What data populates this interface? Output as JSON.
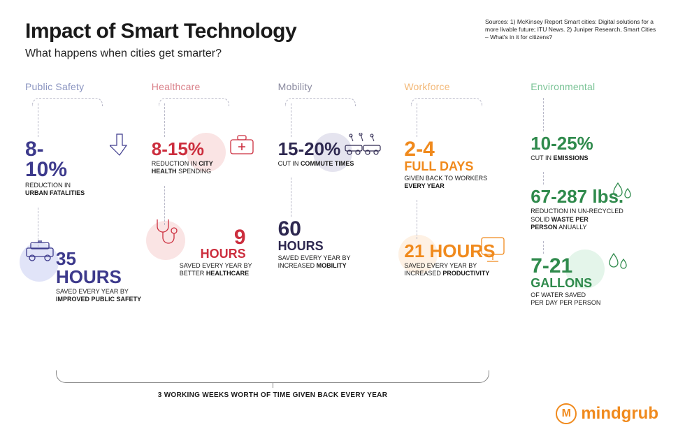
{
  "header": {
    "title": "Impact of Smart Technology",
    "subtitle": "What happens when cities get smarter?",
    "sources": "Sources: 1) McKinsey Report Smart cities: Digital solutions for a more livable future; ITU News. 2) Juniper Research, Smart Cities – What's in it for citizens?"
  },
  "colors": {
    "public_safety": "#3d3a8c",
    "healthcare": "#cc2e3e",
    "mobility": "#2e2850",
    "workforce": "#f08a1d",
    "environmental": "#3aa65f",
    "text": "#1a1a1a",
    "background": "#ffffff",
    "connector": "#b8b8c8",
    "logo": "#f08a1d",
    "circle_ps": "#5b6bd6",
    "circle_hc": "#e26b6b",
    "circle_mb": "#6e6aa8",
    "circle_wf": "#f7b267",
    "circle_env": "#6cc68a"
  },
  "typography": {
    "title_fontsize": 30,
    "subtitle_fontsize": 16,
    "col_title_fontsize": 14,
    "stat_value_fontsize": 26,
    "stat_desc_fontsize": 9,
    "sources_fontsize": 8.5,
    "font_family": "Arial"
  },
  "columns": [
    {
      "key": "public_safety",
      "title": "Public Safety",
      "title_color": "#8a94c0",
      "color": "#3d3a8c",
      "circle_color": "#5b6bd6",
      "icon1": "arrow-down-icon",
      "icon2": "police-car-icon",
      "stats": [
        {
          "value_lines": [
            "8-",
            "10%"
          ],
          "desc_html": "REDUCTION IN<br><b>URBAN FATALITIES</b>"
        },
        {
          "value_lines": [
            "35 HOURS"
          ],
          "desc_html": "SAVED EVERY YEAR BY<br><b>IMPROVED PUBLIC SAFETY</b>"
        }
      ]
    },
    {
      "key": "healthcare",
      "title": "Healthcare",
      "title_color": "#d97f88",
      "color": "#cc2e3e",
      "circle_color": "#e26b6b",
      "icon1": "medkit-icon",
      "icon2": "stethoscope-icon",
      "stats": [
        {
          "value_lines": [
            "8-15%"
          ],
          "desc_html": "REDUCTION IN <b>CITY<br>HEALTH</b> SPENDING"
        },
        {
          "value_lines": [
            "9",
            "HOURS"
          ],
          "align": "right",
          "desc_html": "SAVED EVERY YEAR BY<br>BETTER <b>HEALTHCARE</b>"
        }
      ]
    },
    {
      "key": "mobility",
      "title": "Mobility",
      "title_color": "#8b8ba0",
      "color": "#2e2850",
      "circle_color": "#6e6aa8",
      "icon1": "cars-icon",
      "icon2": "",
      "stats": [
        {
          "value_lines": [
            "15-20%"
          ],
          "desc_html": "CUT IN <b>COMMUTE TIMES</b>"
        },
        {
          "value_lines": [
            "60",
            "HOURS"
          ],
          "desc_html": "SAVED EVERY YEAR BY<br>INCREASED <b>MOBILITY</b>"
        }
      ]
    },
    {
      "key": "workforce",
      "title": "Workforce",
      "title_color": "#f3b877",
      "color": "#f08a1d",
      "circle_color": "#f7b267",
      "icon1": "",
      "icon2": "monitor-icon",
      "stats": [
        {
          "value_lines": [
            "2-4",
            "FULL DAYS"
          ],
          "desc_html": "GIVEN BACK TO WORKERS<br><b>EVERY YEAR</b>"
        },
        {
          "value_lines": [
            "21 HOURS"
          ],
          "desc_html": "SAVED EVERY YEAR BY<br>INCREASED <b>PRODUCTIVITY</b>"
        }
      ]
    },
    {
      "key": "environmental",
      "title": "Environmental",
      "title_color": "#7cc497",
      "color": "#2f8a4c",
      "circle_color": "#6cc68a",
      "icon1": "",
      "icon2": "droplets-icon",
      "stats": [
        {
          "value_lines": [
            "10-25%"
          ],
          "desc_html": "CUT IN <b>EMISSIONS</b>"
        },
        {
          "value_lines": [
            "67-287 lbs."
          ],
          "desc_html": "REDUCTION IN UN-RECYCLED<br>SOLID <b>WASTE PER<br>PERSON</b> ANUALLY"
        },
        {
          "value_lines": [
            "7-21",
            "GALLONS"
          ],
          "desc_html": "OF WATER SAVED<br>PER DAY PER PERSON"
        }
      ]
    }
  ],
  "brace_label": "3 WORKING WEEKS WORTH OF TIME GIVEN BACK EVERY YEAR",
  "logo": {
    "text": "mindgrub",
    "color": "#f08a1d"
  }
}
